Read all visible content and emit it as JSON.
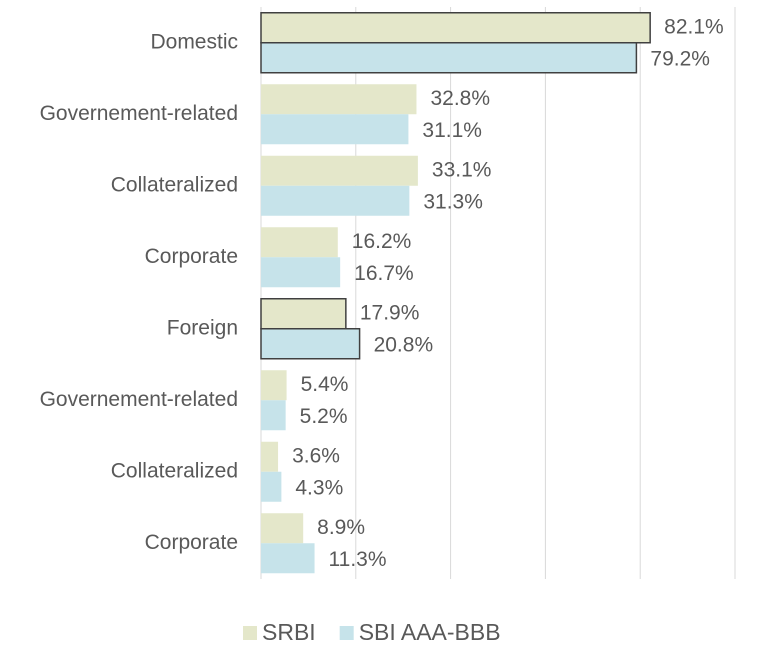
{
  "chart_data": {
    "type": "bar",
    "orientation": "horizontal",
    "categories": [
      "Domestic",
      "Governement-related",
      "Collateralized",
      "Corporate",
      "Foreign",
      "Governement-related",
      "Collateralized",
      "Corporate"
    ],
    "series": [
      {
        "name": "SRBI",
        "color": "#e4e7ca",
        "values": [
          82.1,
          32.8,
          33.1,
          16.2,
          17.9,
          5.4,
          3.6,
          8.9
        ],
        "value_labels": [
          "82.1%",
          "32.8%",
          "33.1%",
          "16.2%",
          "17.9%",
          "5.4%",
          "3.6%",
          "8.9%"
        ]
      },
      {
        "name": "SBI AAA-BBB",
        "color": "#c6e3ea",
        "values": [
          79.2,
          31.1,
          31.3,
          16.7,
          20.8,
          5.2,
          4.3,
          11.3
        ],
        "value_labels": [
          "79.2%",
          "31.1%",
          "31.3%",
          "16.7%",
          "20.8%",
          "5.2%",
          "4.3%",
          "11.3%"
        ]
      }
    ],
    "outlined_categories": [
      0,
      4
    ],
    "xlim": [
      0,
      100
    ],
    "xticks": [
      0,
      20,
      40,
      60,
      80,
      100
    ],
    "grid": true,
    "legend": "bottom"
  }
}
